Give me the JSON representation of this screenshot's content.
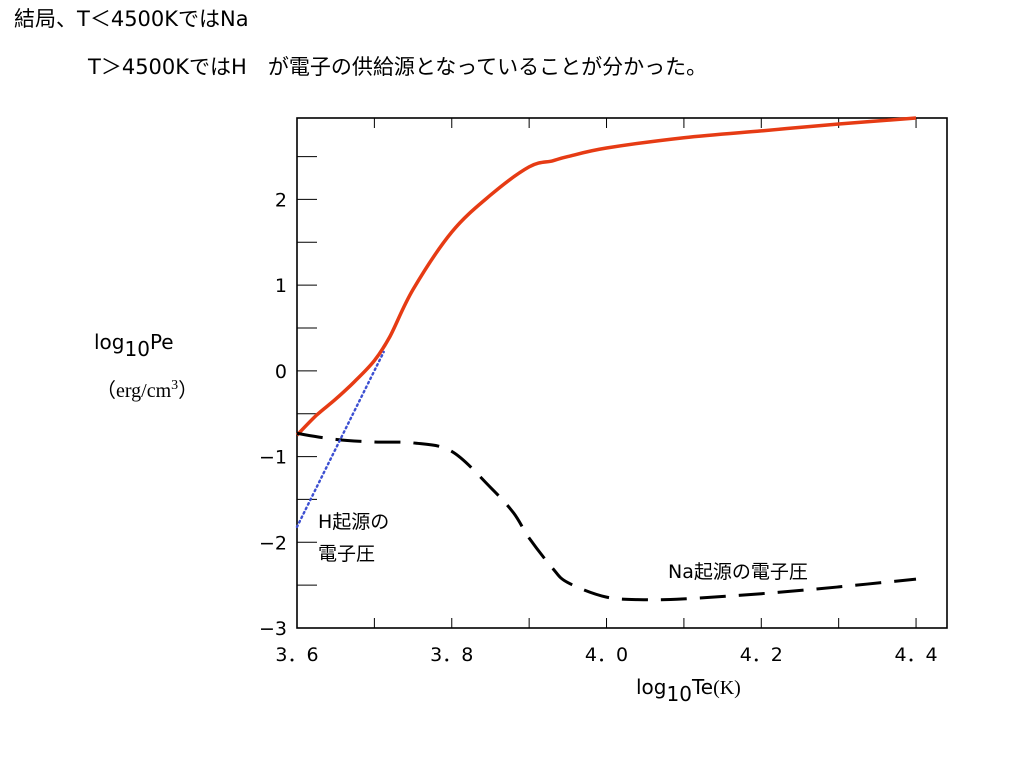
{
  "slide": {
    "line1": "結局、T＜4500KではNa",
    "line2": "T＞4500KではH　が電子の供給源となっていることが分かった。"
  },
  "chart_data": {
    "type": "line",
    "x_axis": {
      "label_main": "log",
      "label_sub": "10",
      "label_var": "Te",
      "label_unit": "(K)",
      "xlim": [
        3.6,
        4.44
      ],
      "ticks": [
        3.6,
        3.7,
        3.8,
        3.9,
        4.0,
        4.1,
        4.2,
        4.3,
        4.4
      ],
      "tick_labels": [
        {
          "x": 3.6,
          "text": "3．6"
        },
        {
          "x": 3.8,
          "text": "3．8"
        },
        {
          "x": 4.0,
          "text": "4．0"
        },
        {
          "x": 4.2,
          "text": "4．2"
        },
        {
          "x": 4.4,
          "text": "4．4"
        }
      ]
    },
    "y_axis": {
      "label_main": "log",
      "label_sub": "10",
      "label_var": "Pe",
      "label_unit_open": "（erg/cm",
      "label_unit_sup": "3",
      "label_unit_close": "）",
      "ylim": [
        -3,
        2.95
      ],
      "ticks": [
        -3,
        -2.5,
        -2,
        -1.5,
        -1,
        -0.5,
        0,
        0.5,
        1,
        1.5,
        2,
        2.5
      ],
      "tick_labels": [
        {
          "y": 2,
          "text": "2"
        },
        {
          "y": 1,
          "text": "1"
        },
        {
          "y": 0,
          "text": "0"
        },
        {
          "y": -1,
          "text": "−1"
        },
        {
          "y": -2,
          "text": "−2"
        },
        {
          "y": -3,
          "text": "−3"
        }
      ]
    },
    "series": [
      {
        "style": "solid",
        "color": "#e63b14",
        "x": [
          3.6,
          3.625,
          3.65,
          3.675,
          3.7,
          3.72,
          3.75,
          3.8,
          3.85,
          3.9,
          3.93,
          3.95,
          4.0,
          4.1,
          4.2,
          4.3,
          4.4
        ],
        "y": [
          -0.75,
          -0.52,
          -0.33,
          -0.12,
          0.12,
          0.4,
          0.95,
          1.62,
          2.05,
          2.38,
          2.45,
          2.5,
          2.6,
          2.72,
          2.8,
          2.88,
          2.95
        ]
      },
      {
        "style": "dashed",
        "color": "#000000",
        "x": [
          3.6,
          3.65,
          3.7,
          3.75,
          3.8,
          3.85,
          3.88,
          3.9,
          3.93,
          3.95,
          4.0,
          4.05,
          4.1,
          4.2,
          4.3,
          4.4
        ],
        "y": [
          -0.73,
          -0.8,
          -0.83,
          -0.84,
          -0.94,
          -1.36,
          -1.66,
          -1.95,
          -2.3,
          -2.47,
          -2.64,
          -2.67,
          -2.66,
          -2.6,
          -2.52,
          -2.43
        ]
      },
      {
        "style": "dotted",
        "color": "#3c4fd1",
        "x": [
          3.6,
          3.712
        ],
        "y": [
          -1.82,
          0.22
        ]
      }
    ],
    "annotations": [
      {
        "line1": "H起源の",
        "line2": "電子圧",
        "x": 3.613,
        "y": -1.65
      },
      {
        "text": "Na起源の電子圧",
        "x": 4.105,
        "y": -2.29
      }
    ]
  }
}
